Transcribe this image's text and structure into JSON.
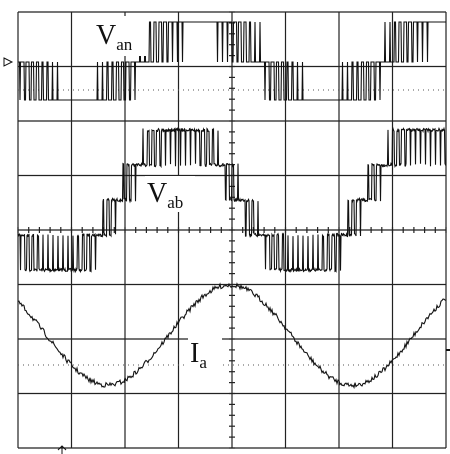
{
  "labels": [
    {
      "main": "V",
      "sub": "an"
    },
    {
      "main": "V",
      "sub": "ab"
    },
    {
      "main": "I",
      "sub": "a"
    }
  ]
}
